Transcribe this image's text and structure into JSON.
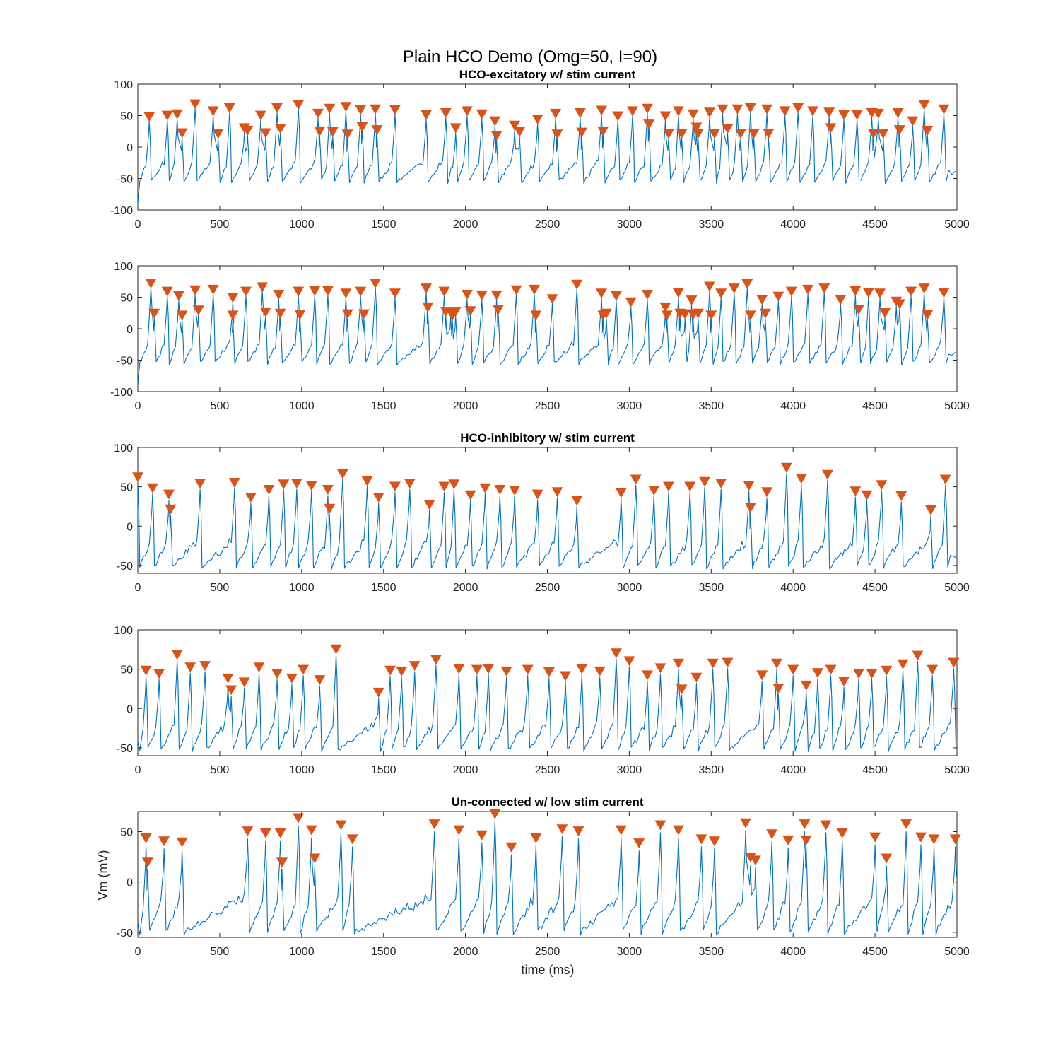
{
  "figure": {
    "title": "Plain HCO Demo (Omg=50, I=90)",
    "xlabel": "time (ms)",
    "ylabel": "Vm (mV)",
    "colors": {
      "trace": "#0072BD",
      "marker": "#D95319",
      "axes": "#262626"
    }
  },
  "chart_data": [
    {
      "type": "line",
      "title": "HCO-excitatory w/ stim current",
      "xlim": [
        0,
        5000
      ],
      "ylim": [
        -100,
        100
      ],
      "xticks": [
        0,
        500,
        1000,
        1500,
        2000,
        2500,
        3000,
        3500,
        4000,
        4500,
        5000
      ],
      "yticks": [
        -100,
        -50,
        0,
        50,
        100
      ],
      "grid": false,
      "trace_baseline": -55,
      "marker": "down-triangle",
      "peaks": [
        [
          70,
          49
        ],
        [
          180,
          51
        ],
        [
          240,
          53
        ],
        [
          270,
          23
        ],
        [
          350,
          69
        ],
        [
          460,
          58
        ],
        [
          490,
          22
        ],
        [
          560,
          63
        ],
        [
          650,
          31
        ],
        [
          670,
          27
        ],
        [
          750,
          51
        ],
        [
          780,
          23
        ],
        [
          850,
          63
        ],
        [
          870,
          30
        ],
        [
          980,
          68
        ],
        [
          1100,
          54
        ],
        [
          1110,
          26
        ],
        [
          1170,
          62
        ],
        [
          1190,
          25
        ],
        [
          1270,
          65
        ],
        [
          1280,
          21
        ],
        [
          1360,
          60
        ],
        [
          1370,
          33
        ],
        [
          1450,
          61
        ],
        [
          1460,
          28
        ],
        [
          1570,
          60
        ],
        [
          1760,
          52
        ],
        [
          1880,
          55
        ],
        [
          1940,
          31
        ],
        [
          2010,
          58
        ],
        [
          2100,
          53
        ],
        [
          2180,
          42
        ],
        [
          2190,
          19
        ],
        [
          2300,
          35
        ],
        [
          2330,
          25
        ],
        [
          2440,
          45
        ],
        [
          2550,
          54
        ],
        [
          2560,
          21
        ],
        [
          2700,
          55
        ],
        [
          2710,
          24
        ],
        [
          2830,
          59
        ],
        [
          2840,
          26
        ],
        [
          2930,
          50
        ],
        [
          3020,
          58
        ],
        [
          3110,
          62
        ],
        [
          3120,
          37
        ],
        [
          3220,
          50
        ],
        [
          3240,
          22
        ],
        [
          3300,
          58
        ],
        [
          3320,
          22
        ],
        [
          3390,
          53
        ],
        [
          3410,
          32
        ],
        [
          3420,
          22
        ],
        [
          3490,
          56
        ],
        [
          3520,
          22
        ],
        [
          3570,
          61
        ],
        [
          3600,
          30
        ],
        [
          3660,
          61
        ],
        [
          3680,
          22
        ],
        [
          3740,
          63
        ],
        [
          3760,
          22
        ],
        [
          3840,
          61
        ],
        [
          3850,
          22
        ],
        [
          3950,
          58
        ],
        [
          4030,
          63
        ],
        [
          4120,
          58
        ],
        [
          4220,
          56
        ],
        [
          4230,
          31
        ],
        [
          4310,
          52
        ],
        [
          4390,
          52
        ],
        [
          4480,
          55
        ],
        [
          4490,
          22
        ],
        [
          4520,
          54
        ],
        [
          4550,
          22
        ],
        [
          4640,
          55
        ],
        [
          4650,
          28
        ],
        [
          4730,
          42
        ],
        [
          4800,
          68
        ],
        [
          4820,
          27
        ],
        [
          4920,
          61
        ]
      ]
    },
    {
      "type": "line",
      "title": "",
      "xlim": [
        0,
        5000
      ],
      "ylim": [
        -100,
        100
      ],
      "xticks": [
        0,
        500,
        1000,
        1500,
        2000,
        2500,
        3000,
        3500,
        4000,
        4500,
        5000
      ],
      "yticks": [
        -100,
        -50,
        0,
        50,
        100
      ],
      "grid": false,
      "trace_baseline": -55,
      "marker": "down-triangle",
      "peaks": [
        [
          80,
          73
        ],
        [
          100,
          25
        ],
        [
          180,
          60
        ],
        [
          250,
          53
        ],
        [
          270,
          22
        ],
        [
          350,
          62
        ],
        [
          370,
          30
        ],
        [
          460,
          63
        ],
        [
          580,
          50
        ],
        [
          580,
          22
        ],
        [
          660,
          60
        ],
        [
          760,
          67
        ],
        [
          780,
          27
        ],
        [
          860,
          55
        ],
        [
          870,
          25
        ],
        [
          980,
          60
        ],
        [
          990,
          23
        ],
        [
          1080,
          61
        ],
        [
          1160,
          61
        ],
        [
          1270,
          57
        ],
        [
          1280,
          24
        ],
        [
          1360,
          60
        ],
        [
          1380,
          24
        ],
        [
          1450,
          73
        ],
        [
          1570,
          57
        ],
        [
          1760,
          65
        ],
        [
          1770,
          35
        ],
        [
          1870,
          60
        ],
        [
          1880,
          28
        ],
        [
          1910,
          27
        ],
        [
          1920,
          22
        ],
        [
          1940,
          28
        ],
        [
          2010,
          55
        ],
        [
          2030,
          29
        ],
        [
          2100,
          54
        ],
        [
          2190,
          54
        ],
        [
          2200,
          31
        ],
        [
          2310,
          62
        ],
        [
          2420,
          63
        ],
        [
          2430,
          22
        ],
        [
          2530,
          48
        ],
        [
          2680,
          71
        ],
        [
          2830,
          57
        ],
        [
          2840,
          22
        ],
        [
          2860,
          25
        ],
        [
          2920,
          53
        ],
        [
          3010,
          43
        ],
        [
          3110,
          55
        ],
        [
          3220,
          35
        ],
        [
          3230,
          22
        ],
        [
          3300,
          58
        ],
        [
          3310,
          25
        ],
        [
          3340,
          24
        ],
        [
          3380,
          46
        ],
        [
          3390,
          23
        ],
        [
          3420,
          25
        ],
        [
          3490,
          68
        ],
        [
          3500,
          22
        ],
        [
          3560,
          57
        ],
        [
          3640,
          65
        ],
        [
          3720,
          72
        ],
        [
          3740,
          22
        ],
        [
          3810,
          47
        ],
        [
          3830,
          25
        ],
        [
          3910,
          52
        ],
        [
          3990,
          60
        ],
        [
          4090,
          63
        ],
        [
          4190,
          65
        ],
        [
          4290,
          47
        ],
        [
          4380,
          61
        ],
        [
          4400,
          31
        ],
        [
          4460,
          58
        ],
        [
          4530,
          57
        ],
        [
          4560,
          26
        ],
        [
          4630,
          44
        ],
        [
          4650,
          40
        ],
        [
          4720,
          60
        ],
        [
          4800,
          65
        ],
        [
          4820,
          23
        ],
        [
          4920,
          58
        ]
      ]
    },
    {
      "type": "line",
      "title": "HCO-inhibitory w/ stim current",
      "xlim": [
        0,
        5000
      ],
      "ylim": [
        -60,
        100
      ],
      "xticks": [
        0,
        500,
        1000,
        1500,
        2000,
        2500,
        3000,
        3500,
        4000,
        4500,
        5000
      ],
      "yticks": [
        -50,
        0,
        50,
        100
      ],
      "grid": false,
      "trace_baseline": -52,
      "marker": "down-triangle",
      "peaks": [
        [
          0,
          63
        ],
        [
          90,
          49
        ],
        [
          190,
          41
        ],
        [
          200,
          22
        ],
        [
          380,
          55
        ],
        [
          590,
          56
        ],
        [
          690,
          37
        ],
        [
          800,
          47
        ],
        [
          890,
          54
        ],
        [
          970,
          55
        ],
        [
          1060,
          52
        ],
        [
          1160,
          47
        ],
        [
          1170,
          23
        ],
        [
          1250,
          67
        ],
        [
          1400,
          58
        ],
        [
          1470,
          37
        ],
        [
          1570,
          51
        ],
        [
          1660,
          55
        ],
        [
          1780,
          28
        ],
        [
          1870,
          51
        ],
        [
          1930,
          54
        ],
        [
          2030,
          40
        ],
        [
          2120,
          49
        ],
        [
          2210,
          47
        ],
        [
          2300,
          46
        ],
        [
          2440,
          41
        ],
        [
          2560,
          44
        ],
        [
          2680,
          33
        ],
        [
          2950,
          43
        ],
        [
          3040,
          60
        ],
        [
          3150,
          46
        ],
        [
          3240,
          51
        ],
        [
          3370,
          51
        ],
        [
          3460,
          57
        ],
        [
          3560,
          55
        ],
        [
          3730,
          52
        ],
        [
          3740,
          24
        ],
        [
          3840,
          44
        ],
        [
          3960,
          75
        ],
        [
          4050,
          61
        ],
        [
          4210,
          66
        ],
        [
          4380,
          45
        ],
        [
          4450,
          40
        ],
        [
          4540,
          53
        ],
        [
          4660,
          39
        ],
        [
          4840,
          21
        ],
        [
          4930,
          60
        ]
      ]
    },
    {
      "type": "line",
      "title": "",
      "xlim": [
        0,
        5000
      ],
      "ylim": [
        -60,
        100
      ],
      "xticks": [
        0,
        500,
        1000,
        1500,
        2000,
        2500,
        3000,
        3500,
        4000,
        4500,
        5000
      ],
      "yticks": [
        -50,
        0,
        50,
        100
      ],
      "grid": false,
      "trace_baseline": -52,
      "marker": "down-triangle",
      "peaks": [
        [
          50,
          49
        ],
        [
          130,
          45
        ],
        [
          240,
          69
        ],
        [
          320,
          53
        ],
        [
          410,
          55
        ],
        [
          550,
          39
        ],
        [
          570,
          24
        ],
        [
          650,
          34
        ],
        [
          740,
          53
        ],
        [
          850,
          45
        ],
        [
          940,
          39
        ],
        [
          1010,
          50
        ],
        [
          1110,
          37
        ],
        [
          1210,
          76
        ],
        [
          1470,
          21
        ],
        [
          1540,
          49
        ],
        [
          1610,
          48
        ],
        [
          1690,
          55
        ],
        [
          1820,
          63
        ],
        [
          1960,
          51
        ],
        [
          2070,
          50
        ],
        [
          2140,
          51
        ],
        [
          2250,
          48
        ],
        [
          2380,
          50
        ],
        [
          2510,
          47
        ],
        [
          2610,
          42
        ],
        [
          2710,
          51
        ],
        [
          2820,
          48
        ],
        [
          2920,
          71
        ],
        [
          3000,
          61
        ],
        [
          3110,
          43
        ],
        [
          3190,
          52
        ],
        [
          3300,
          58
        ],
        [
          3320,
          25
        ],
        [
          3410,
          40
        ],
        [
          3510,
          58
        ],
        [
          3600,
          59
        ],
        [
          3810,
          43
        ],
        [
          3900,
          58
        ],
        [
          3910,
          26
        ],
        [
          4000,
          50
        ],
        [
          4080,
          30
        ],
        [
          4150,
          46
        ],
        [
          4230,
          50
        ],
        [
          4310,
          35
        ],
        [
          4400,
          45
        ],
        [
          4480,
          45
        ],
        [
          4570,
          49
        ],
        [
          4670,
          57
        ],
        [
          4760,
          68
        ],
        [
          4850,
          50
        ],
        [
          4980,
          59
        ]
      ]
    },
    {
      "type": "line",
      "title": "Un-connected w/ low stim current",
      "xlim": [
        0,
        5000
      ],
      "ylim": [
        -55,
        70
      ],
      "xticks": [
        0,
        500,
        1000,
        1500,
        2000,
        2500,
        3000,
        3500,
        4000,
        4500,
        5000
      ],
      "yticks": [
        -50,
        0,
        50
      ],
      "grid": false,
      "trace_baseline": -50,
      "marker": "down-triangle",
      "peaks": [
        [
          50,
          44
        ],
        [
          60,
          20
        ],
        [
          160,
          41
        ],
        [
          270,
          40
        ],
        [
          670,
          51
        ],
        [
          780,
          49
        ],
        [
          870,
          49
        ],
        [
          880,
          20
        ],
        [
          980,
          64
        ],
        [
          1060,
          52
        ],
        [
          1080,
          24
        ],
        [
          1240,
          57
        ],
        [
          1310,
          43
        ],
        [
          1810,
          58
        ],
        [
          1960,
          52
        ],
        [
          2100,
          47
        ],
        [
          2180,
          68
        ],
        [
          2280,
          35
        ],
        [
          2430,
          44
        ],
        [
          2590,
          53
        ],
        [
          2690,
          51
        ],
        [
          2950,
          52
        ],
        [
          3060,
          39
        ],
        [
          3190,
          57
        ],
        [
          3300,
          52
        ],
        [
          3440,
          43
        ],
        [
          3520,
          41
        ],
        [
          3710,
          59
        ],
        [
          3740,
          25
        ],
        [
          3770,
          22
        ],
        [
          3870,
          48
        ],
        [
          3970,
          42
        ],
        [
          4070,
          58
        ],
        [
          4080,
          42
        ],
        [
          4200,
          57
        ],
        [
          4300,
          49
        ],
        [
          4500,
          45
        ],
        [
          4570,
          24
        ],
        [
          4690,
          58
        ],
        [
          4780,
          45
        ],
        [
          4860,
          43
        ],
        [
          4990,
          43
        ]
      ]
    }
  ]
}
